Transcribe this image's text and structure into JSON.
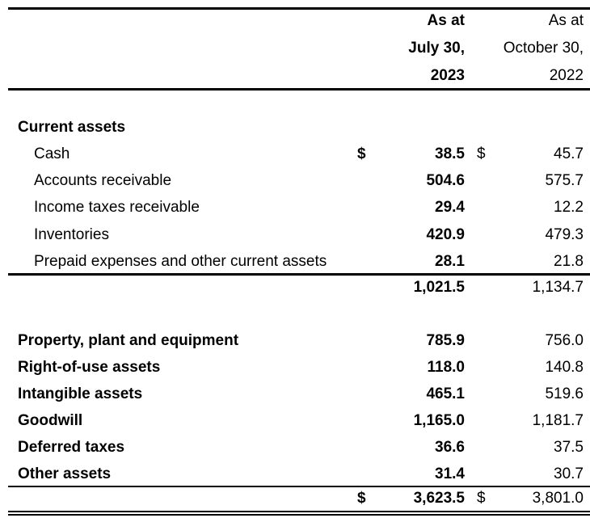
{
  "header": {
    "col1": [
      "As at",
      "July 30,",
      "2023"
    ],
    "col2": [
      "As at",
      "October 30,",
      "2022"
    ]
  },
  "current_assets": {
    "title": "Current assets",
    "rows": [
      {
        "label": "Cash",
        "v1": "38.5",
        "v2": "45.7",
        "dollar1": "$",
        "dollar2": "$"
      },
      {
        "label": "Accounts receivable",
        "v1": "504.6",
        "v2": "575.7"
      },
      {
        "label": "Income taxes receivable",
        "v1": "29.4",
        "v2": "12.2"
      },
      {
        "label": "Inventories",
        "v1": "420.9",
        "v2": "479.3"
      },
      {
        "label": "Prepaid expenses and other current assets",
        "v1": "28.1",
        "v2": "21.8"
      }
    ],
    "subtotal": {
      "v1": "1,021.5",
      "v2": "1,134.7"
    }
  },
  "noncurrent": [
    {
      "label": "Property, plant and equipment",
      "v1": "785.9",
      "v2": "756.0"
    },
    {
      "label": "Right-of-use assets",
      "v1": "118.0",
      "v2": "140.8"
    },
    {
      "label": "Intangible assets",
      "v1": "465.1",
      "v2": "519.6"
    },
    {
      "label": "Goodwill",
      "v1": "1,165.0",
      "v2": "1,181.7"
    },
    {
      "label": "Deferred taxes",
      "v1": "36.6",
      "v2": "37.5"
    },
    {
      "label": "Other assets",
      "v1": "31.4",
      "v2": "30.7"
    }
  ],
  "total": {
    "dollar1": "$",
    "v1": "3,623.5",
    "dollar2": "$",
    "v2": "3,801.0"
  }
}
